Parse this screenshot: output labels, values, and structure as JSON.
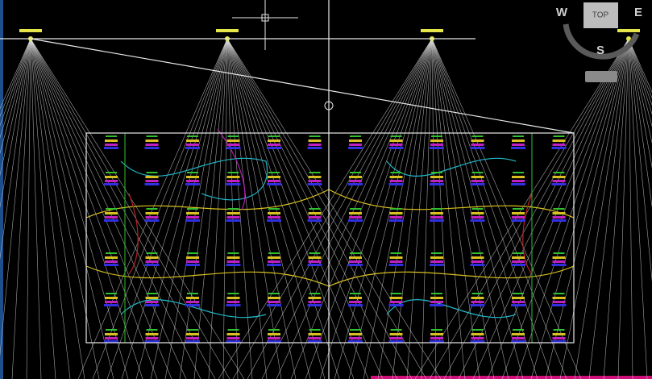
{
  "compass": {
    "west": "W",
    "east": "E",
    "south": "S",
    "view": "TOP"
  }
}
